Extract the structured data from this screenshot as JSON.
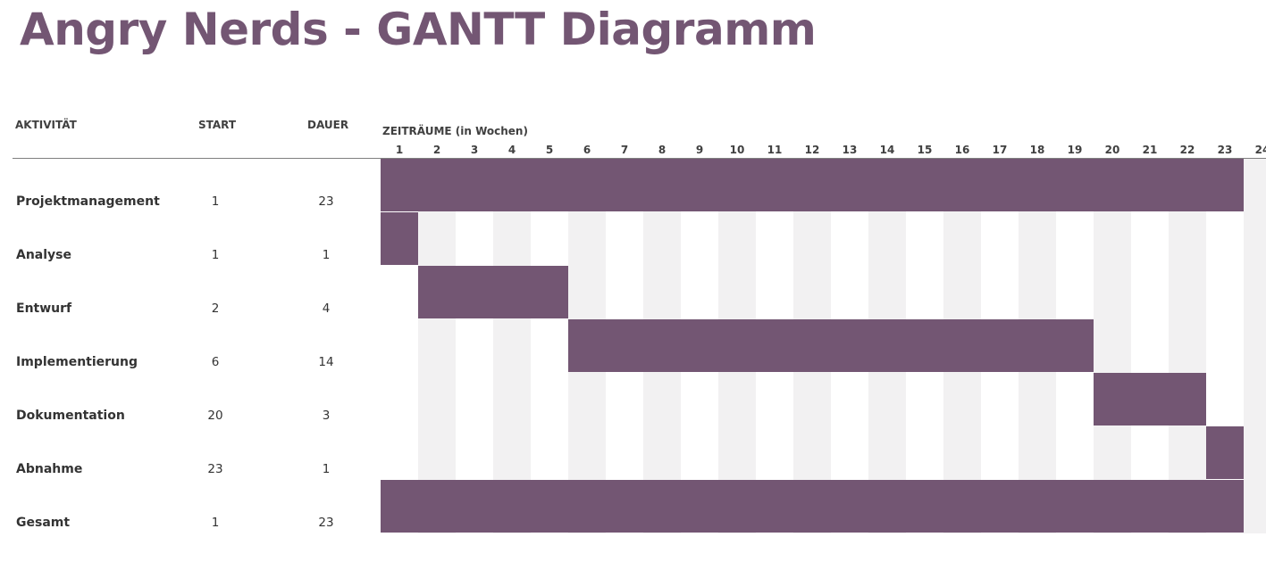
{
  "page": {
    "title": "Angry Nerds - GANTT Diagramm"
  },
  "table": {
    "headers": {
      "activity": "AKTIVITÄT",
      "start": "START",
      "duration": "DAUER",
      "period": "ZEITRÄUME (in Wochen)"
    }
  },
  "chart_data": {
    "type": "bar",
    "subtype": "gantt",
    "title": "Angry Nerds - GANTT Diagramm",
    "xlabel": "ZEITRÄUME (in Wochen)",
    "ylabel": "",
    "xlim": [
      1,
      24
    ],
    "weeks": [
      "1",
      "2",
      "3",
      "4",
      "5",
      "6",
      "7",
      "8",
      "9",
      "10",
      "11",
      "12",
      "13",
      "14",
      "15",
      "16",
      "17",
      "18",
      "19",
      "20",
      "21",
      "22",
      "23",
      "24"
    ],
    "tasks": [
      {
        "name": "Projektmanagement",
        "start": 1,
        "duration": 23
      },
      {
        "name": "Analyse",
        "start": 1,
        "duration": 1
      },
      {
        "name": "Entwurf",
        "start": 2,
        "duration": 4
      },
      {
        "name": "Implementierung",
        "start": 6,
        "duration": 14
      },
      {
        "name": "Dokumentation",
        "start": 20,
        "duration": 3
      },
      {
        "name": "Abnahme",
        "start": 23,
        "duration": 1
      },
      {
        "name": "Gesamt",
        "start": 1,
        "duration": 23
      }
    ],
    "colors": {
      "bar": "#735673",
      "stripe": "#f2f1f2",
      "title": "#735673"
    }
  }
}
